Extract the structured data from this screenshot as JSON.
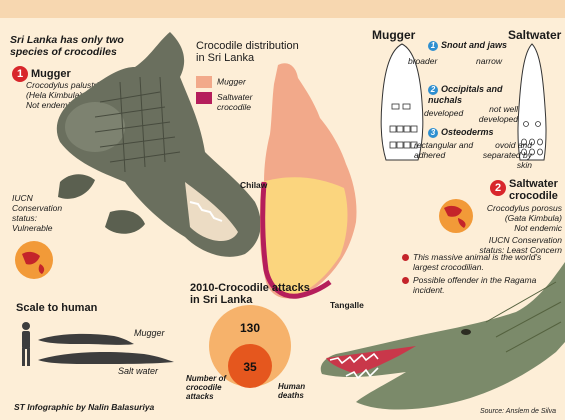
{
  "intro": "Sri Lanka has only two species of crocodiles",
  "mugger": {
    "number": "1",
    "name": "Mugger",
    "scientific": "Crocodylus palustris",
    "local_name": "(Hela Kimbula)",
    "status": "Not endemic",
    "iucn": [
      "IUCN",
      "Conservation",
      "status:",
      "Vulnerable"
    ]
  },
  "map": {
    "title": "Crocodile distribution in Sri Lanka",
    "legend": [
      {
        "label": "Mugger",
        "color": "#f2a98a"
      },
      {
        "label": "Saltwater crocodile",
        "color": "#b51e5b"
      }
    ],
    "places": [
      "Chilaw",
      "Tangalle"
    ]
  },
  "compare": {
    "left_heading": "Mugger",
    "right_heading": "Saltwater",
    "features": [
      {
        "number": "1",
        "name": "Snout and jaws",
        "left": "broader",
        "right": "narrow"
      },
      {
        "number": "2",
        "name": "Occipitals and nuchals",
        "left": "developed",
        "right": "not well developed"
      },
      {
        "number": "3",
        "name": "Osteoderms",
        "left": "rectangular and adhered",
        "right": "ovoid and separated by skin"
      }
    ]
  },
  "saltwater": {
    "number": "2",
    "name": "Saltwater crocodile",
    "scientific": "Crocodylus porosus",
    "local_name": "(Gata Kimbula)",
    "status": "Not endemic",
    "iucn": "IUCN Conservation status: Least Concern",
    "notes": [
      "This massive animal is the world's largest crocodilian.",
      "Possible offender in the Ragama incident."
    ]
  },
  "attacks": {
    "title": "2010-Crocodile attacks in Sri Lanka",
    "total": 130,
    "deaths": 35,
    "label_total": "Number of crocodile attacks",
    "label_deaths": "Human deaths",
    "colors": {
      "total": "#f6b26b",
      "deaths": "#e5571e"
    }
  },
  "scale": {
    "title": "Scale to human",
    "labels": [
      "Mugger",
      "Salt water"
    ]
  },
  "credit": "ST Infographic by Nalin Balasuriya",
  "source": "Source: Anslem de Silva"
}
